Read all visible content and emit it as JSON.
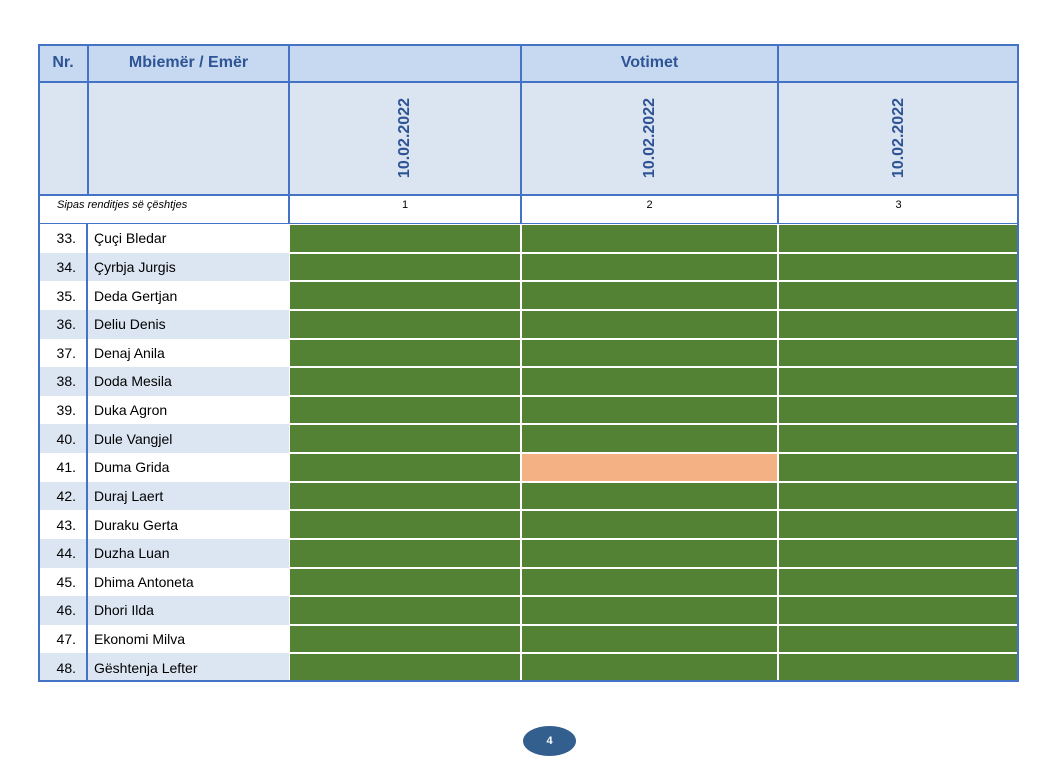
{
  "header": {
    "nr": "Nr.",
    "name": "Mbiemër / Emër",
    "votes": "Votimet"
  },
  "dates": [
    "10.02.2022",
    "10.02.2022",
    "10.02.2022"
  ],
  "order_label": "Sipas renditjes së çështjes",
  "order": [
    1,
    2,
    3
  ],
  "rows": [
    {
      "nr": "33.",
      "name": "Çuçi Bledar",
      "colors": [
        "#548235",
        "#548235",
        "#548235"
      ]
    },
    {
      "nr": "34.",
      "name": "Çyrbja Jurgis",
      "colors": [
        "#548235",
        "#548235",
        "#548235"
      ]
    },
    {
      "nr": "35.",
      "name": "Deda Gertjan",
      "colors": [
        "#548235",
        "#548235",
        "#548235"
      ]
    },
    {
      "nr": "36.",
      "name": "Deliu Denis",
      "colors": [
        "#548235",
        "#548235",
        "#548235"
      ]
    },
    {
      "nr": "37.",
      "name": "Denaj Anila",
      "colors": [
        "#548235",
        "#548235",
        "#548235"
      ]
    },
    {
      "nr": "38.",
      "name": "Doda Mesila",
      "colors": [
        "#548235",
        "#548235",
        "#548235"
      ]
    },
    {
      "nr": "39.",
      "name": "Duka  Agron",
      "colors": [
        "#548235",
        "#548235",
        "#548235"
      ]
    },
    {
      "nr": "40.",
      "name": "Dule Vangjel",
      "colors": [
        "#548235",
        "#548235",
        "#548235"
      ]
    },
    {
      "nr": "41.",
      "name": "Duma Grida",
      "colors": [
        "#548235",
        "#f4b183",
        "#548235"
      ]
    },
    {
      "nr": "42.",
      "name": "Duraj Laert",
      "colors": [
        "#548235",
        "#548235",
        "#548235"
      ]
    },
    {
      "nr": "43.",
      "name": "Duraku Gerta",
      "colors": [
        "#548235",
        "#548235",
        "#548235"
      ]
    },
    {
      "nr": "44.",
      "name": "Duzha Luan",
      "colors": [
        "#548235",
        "#548235",
        "#548235"
      ]
    },
    {
      "nr": "45.",
      "name": "Dhima Antoneta",
      "colors": [
        "#548235",
        "#548235",
        "#548235"
      ]
    },
    {
      "nr": "46.",
      "name": "Dhori Ilda",
      "colors": [
        "#548235",
        "#548235",
        "#548235"
      ]
    },
    {
      "nr": "47.",
      "name": "Ekonomi Milva",
      "colors": [
        "#548235",
        "#548235",
        "#548235"
      ]
    },
    {
      "nr": "48.",
      "name": "Gështenja Lefter",
      "colors": [
        "#548235",
        "#548235",
        "#548235"
      ]
    }
  ],
  "page_number": "4"
}
